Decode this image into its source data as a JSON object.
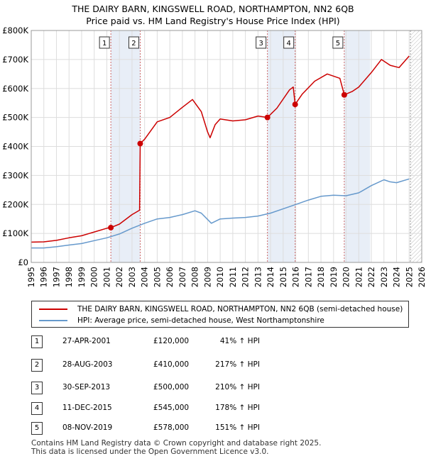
{
  "title_line1": "THE DAIRY BARN, KINGSWELL ROAD, NORTHAMPTON, NN2 6QB",
  "title_line2": "Price paid vs. HM Land Registry's House Price Index (HPI)",
  "legend": {
    "property": "THE DAIRY BARN, KINGSWELL ROAD, NORTHAMPTON, NN2 6QB (semi-detached house)",
    "hpi": "HPI: Average price, semi-detached house, West Northamptonshire"
  },
  "colors": {
    "property": "#cc0000",
    "hpi": "#6699cc",
    "shade": "#e8eef7",
    "grid": "#dddddd"
  },
  "sales": [
    {
      "num": "1",
      "date": "27-APR-2001",
      "price": "£120,000",
      "hpi": "41% ↑ HPI"
    },
    {
      "num": "2",
      "date": "28-AUG-2003",
      "price": "£410,000",
      "hpi": "217% ↑ HPI"
    },
    {
      "num": "3",
      "date": "30-SEP-2013",
      "price": "£500,000",
      "hpi": "210% ↑ HPI"
    },
    {
      "num": "4",
      "date": "11-DEC-2015",
      "price": "£545,000",
      "hpi": "178% ↑ HPI"
    },
    {
      "num": "5",
      "date": "08-NOV-2019",
      "price": "£578,000",
      "hpi": "151% ↑ HPI"
    }
  ],
  "footer_line1": "Contains HM Land Registry data © Crown copyright and database right 2025.",
  "footer_line2": "This data is licensed under the Open Government Licence v3.0.",
  "chart_data": {
    "type": "line",
    "title": "THE DAIRY BARN, KINGSWELL ROAD, NORTHAMPTON, NN2 6QB — Price paid vs. HM Land Registry's House Price Index (HPI)",
    "xlabel": "",
    "ylabel": "",
    "xlim": [
      1995,
      2026
    ],
    "ylim": [
      0,
      800000
    ],
    "x_ticks": [
      1995,
      1996,
      1997,
      1998,
      1999,
      2000,
      2001,
      2002,
      2003,
      2004,
      2005,
      2006,
      2007,
      2008,
      2009,
      2010,
      2011,
      2012,
      2013,
      2014,
      2015,
      2016,
      2017,
      2018,
      2019,
      2020,
      2021,
      2022,
      2023,
      2024,
      2025,
      2026
    ],
    "y_ticks": [
      {
        "value": 0,
        "label": "£0"
      },
      {
        "value": 100000,
        "label": "£100K"
      },
      {
        "value": 200000,
        "label": "£200K"
      },
      {
        "value": 300000,
        "label": "£300K"
      },
      {
        "value": 400000,
        "label": "£400K"
      },
      {
        "value": 500000,
        "label": "£500K"
      },
      {
        "value": 600000,
        "label": "£600K"
      },
      {
        "value": 700000,
        "label": "£700K"
      },
      {
        "value": 800000,
        "label": "£800K"
      }
    ],
    "grid": true,
    "hatch_after": 2025.1,
    "series": [
      {
        "name": "THE DAIRY BARN, KINGSWELL ROAD, NORTHAMPTON, NN2 6QB (semi-detached house)",
        "key": "property",
        "points": [
          [
            1995.0,
            70000
          ],
          [
            1996.0,
            71000
          ],
          [
            1997.0,
            76000
          ],
          [
            1998.0,
            85000
          ],
          [
            1999.0,
            92000
          ],
          [
            2000.0,
            105000
          ],
          [
            2001.0,
            118000
          ],
          [
            2001.32,
            120000
          ],
          [
            2002.0,
            132000
          ],
          [
            2003.0,
            165000
          ],
          [
            2003.6,
            180000
          ],
          [
            2003.65,
            410000
          ],
          [
            2004.0,
            425000
          ],
          [
            2005.0,
            485000
          ],
          [
            2006.0,
            500000
          ],
          [
            2007.0,
            535000
          ],
          [
            2007.8,
            562000
          ],
          [
            2008.5,
            520000
          ],
          [
            2009.0,
            450000
          ],
          [
            2009.2,
            430000
          ],
          [
            2009.6,
            475000
          ],
          [
            2010.0,
            495000
          ],
          [
            2011.0,
            488000
          ],
          [
            2012.0,
            492000
          ],
          [
            2013.0,
            505000
          ],
          [
            2013.75,
            500000
          ],
          [
            2014.5,
            532000
          ],
          [
            2015.5,
            595000
          ],
          [
            2015.8,
            605000
          ],
          [
            2015.95,
            545000
          ],
          [
            2016.5,
            580000
          ],
          [
            2017.5,
            625000
          ],
          [
            2018.5,
            650000
          ],
          [
            2019.5,
            635000
          ],
          [
            2019.85,
            578000
          ],
          [
            2020.5,
            590000
          ],
          [
            2021.0,
            605000
          ],
          [
            2022.0,
            655000
          ],
          [
            2022.8,
            700000
          ],
          [
            2023.5,
            680000
          ],
          [
            2024.2,
            672000
          ],
          [
            2025.0,
            712000
          ]
        ]
      },
      {
        "name": "HPI: Average price, semi-detached house, West Northamptonshire",
        "key": "hpi",
        "points": [
          [
            1995.0,
            50000
          ],
          [
            1996.0,
            50000
          ],
          [
            1997.0,
            54000
          ],
          [
            1998.0,
            60000
          ],
          [
            1999.0,
            65000
          ],
          [
            2000.0,
            75000
          ],
          [
            2001.0,
            85000
          ],
          [
            2002.0,
            98000
          ],
          [
            2003.0,
            118000
          ],
          [
            2004.0,
            135000
          ],
          [
            2005.0,
            150000
          ],
          [
            2006.0,
            155000
          ],
          [
            2007.0,
            165000
          ],
          [
            2008.0,
            178000
          ],
          [
            2008.5,
            170000
          ],
          [
            2009.3,
            135000
          ],
          [
            2010.0,
            150000
          ],
          [
            2011.0,
            153000
          ],
          [
            2012.0,
            155000
          ],
          [
            2013.0,
            160000
          ],
          [
            2014.0,
            170000
          ],
          [
            2015.0,
            185000
          ],
          [
            2016.0,
            200000
          ],
          [
            2017.0,
            215000
          ],
          [
            2018.0,
            228000
          ],
          [
            2019.0,
            232000
          ],
          [
            2020.0,
            230000
          ],
          [
            2021.0,
            240000
          ],
          [
            2022.0,
            265000
          ],
          [
            2023.0,
            285000
          ],
          [
            2023.5,
            278000
          ],
          [
            2024.0,
            275000
          ],
          [
            2025.0,
            288000
          ]
        ]
      }
    ],
    "sale_markers": [
      {
        "label": "1",
        "x": 2001.32,
        "y": 120000
      },
      {
        "label": "2",
        "x": 2003.65,
        "y": 410000
      },
      {
        "label": "3",
        "x": 2013.75,
        "y": 500000
      },
      {
        "label": "4",
        "x": 2015.95,
        "y": 545000
      },
      {
        "label": "5",
        "x": 2019.85,
        "y": 578000
      }
    ],
    "shaded_periods": [
      [
        2001.32,
        2003.65
      ],
      [
        2013.75,
        2015.95
      ],
      [
        2019.85,
        2021.9
      ]
    ]
  }
}
